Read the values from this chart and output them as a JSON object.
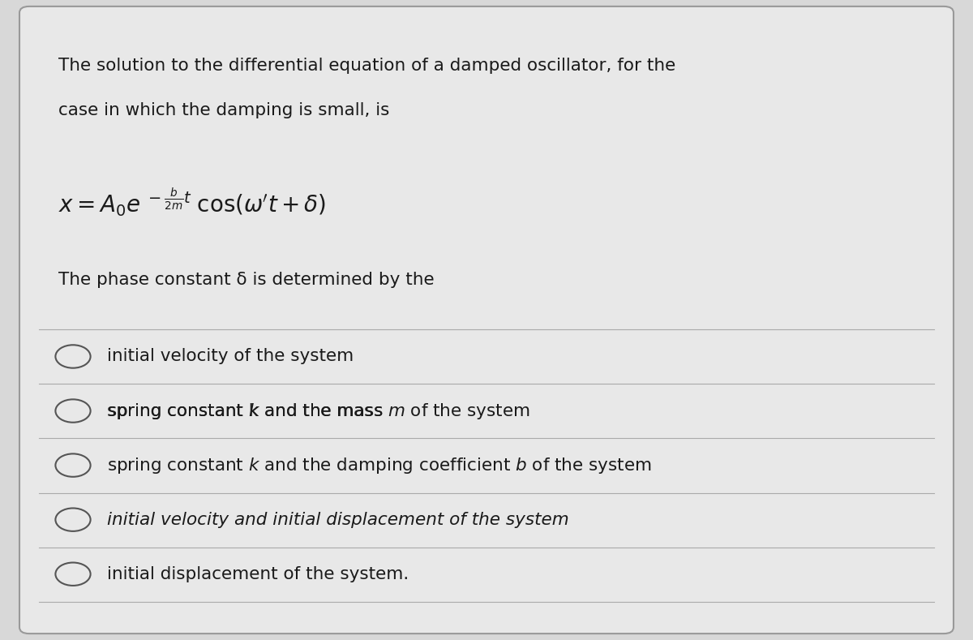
{
  "bg_color": "#d8d8d8",
  "card_bg": "#e8e8e8",
  "border_color": "#999999",
  "text_color": "#1a1a1a",
  "title_text_line1": "The solution to the differential equation of a damped oscillator, for the",
  "title_text_line2": "case in which the damping is small, is",
  "phase_text": "The phase constant δ is determined by the",
  "options": [
    "initial velocity of the system",
    "spring constant k and the mass m of the system",
    "spring constant k and the damping coefficient b of the system",
    "initial velocity and initial displacement of the system",
    "initial displacement of the system."
  ],
  "divider_color": "#aaaaaa",
  "circle_color": "#555555",
  "fig_width": 12.0,
  "fig_height": 7.89
}
